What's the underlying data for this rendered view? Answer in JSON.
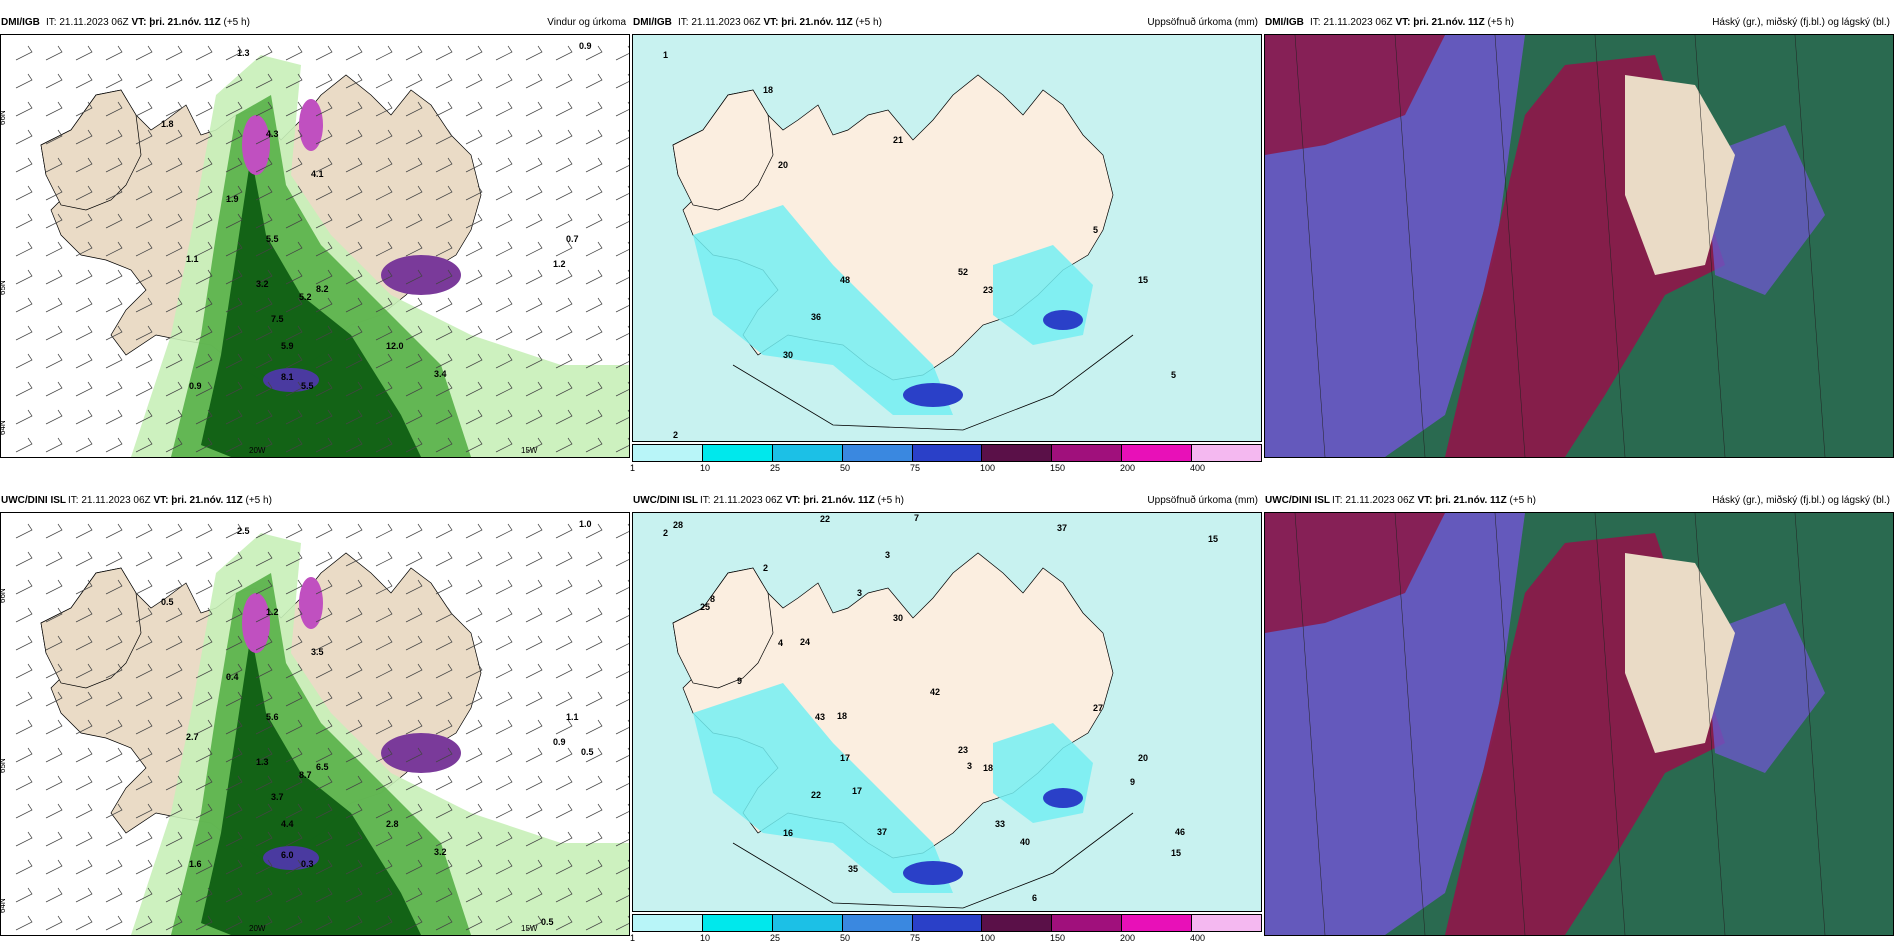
{
  "panels": [
    {
      "source": "DMI/IGB",
      "meta_it": "IT: 21.11.2023 06Z",
      "meta_vt_label": "VT:",
      "meta_vt": "þri. 21.nóv. 11Z",
      "meta_lead": "(+5 h)",
      "right": "Vindur og úrkoma",
      "kind": "wind"
    },
    {
      "source": "DMI/IGB",
      "meta_it": "IT: 21.11.2023 06Z",
      "meta_vt_label": "VT:",
      "meta_vt": "þri. 21.nóv. 11Z",
      "meta_lead": "(+5 h)",
      "right": "Uppsöfnuð úrkoma (mm)",
      "kind": "precip"
    },
    {
      "source": "DMI/IGB",
      "meta_it": "IT: 21.11.2023 06Z",
      "meta_vt_label": "VT:",
      "meta_vt": "þri. 21.nóv. 11Z",
      "meta_lead": "(+5 h)",
      "right": "Háský (gr.), miðský (fj.bl.) og lágský (bl.)",
      "kind": "cloud"
    },
    {
      "source": "UWC/DINI ISL",
      "meta_it": "IT: 21.11.2023 06Z",
      "meta_vt_label": "VT:",
      "meta_vt": "þri. 21.nóv. 11Z",
      "meta_lead": "(+5 h)",
      "right": "",
      "kind": "wind"
    },
    {
      "source": "UWC/DINI ISL",
      "meta_it": "IT: 21.11.2023 06Z",
      "meta_vt_label": "VT:",
      "meta_vt": "þri. 21.nóv. 11Z",
      "meta_lead": "(+5 h)",
      "right": "Uppsöfnuð úrkoma (mm)",
      "kind": "precip"
    },
    {
      "source": "UWC/DINI ISL",
      "meta_it": "IT: 21.11.2023 06Z",
      "meta_vt_label": "VT:",
      "meta_vt": "þri. 21.nóv. 11Z",
      "meta_lead": "(+5 h)",
      "right": "Háský (gr.), miðský (fj.bl.) og lágský (bl.)",
      "kind": "cloud"
    }
  ],
  "colorbar": {
    "ticks": [
      "1",
      "10",
      "25",
      "50",
      "75",
      "100",
      "150",
      "200",
      "400"
    ],
    "colors": [
      "#b8f5f8",
      "#00e8ec",
      "#1cc0e6",
      "#3a88e0",
      "#2a40c8",
      "#5a1048",
      "#a0107c",
      "#e810b8",
      "#f4b8f0"
    ]
  },
  "axis_labels": {
    "lat_66": "66N",
    "lat_65": "65N",
    "lat_64": "64N",
    "lon_20": "20W",
    "lon_15": "15W"
  },
  "colors": {
    "land": "#eadbc6",
    "land_precip": "#fbeee0",
    "sea_light": "#c8f2f0",
    "wind_green_light": "#c8f0b8",
    "wind_green_mid": "#58b048",
    "wind_green_dark": "#0a5a10",
    "cloud_high": "#2a6a50",
    "cloud_mid": "#6a58c8",
    "cloud_low": "#8a1a4a"
  },
  "wind_numbers_top": [
    "1.8",
    "4.3",
    "4.1",
    "1.9",
    "5.5",
    "1.1",
    "3.2",
    "8.2",
    "5.2",
    "7.5",
    "5.9",
    "8.1",
    "0.9",
    "5.5",
    "12.0",
    "3.4",
    "0.7",
    "1.2",
    "0.9",
    "1.3"
  ],
  "wind_numbers_bottom": [
    "0.5",
    "1.2",
    "3.5",
    "0.4",
    "5.6",
    "2.7",
    "1.3",
    "6.5",
    "8.7",
    "3.7",
    "4.4",
    "6.0",
    "1.6",
    "0.3",
    "2.8",
    "3.2",
    "1.1",
    "0.9",
    "1.0",
    "2.5",
    "0.5",
    "0.5"
  ],
  "precip_numbers_top": [
    "1",
    "18",
    "20",
    "21",
    "48",
    "52",
    "36",
    "30",
    "23",
    "15",
    "5",
    "5",
    "2"
  ],
  "precip_numbers_bottom": [
    "2",
    "2",
    "4",
    "30",
    "17",
    "23",
    "22",
    "16",
    "18",
    "20",
    "15",
    "27",
    "28",
    "25",
    "24",
    "43",
    "42",
    "37",
    "33",
    "35",
    "22",
    "40",
    "46",
    "15",
    "9",
    "8",
    "9",
    "18",
    "17",
    "3",
    "7",
    "6",
    "3",
    "3",
    "37"
  ]
}
